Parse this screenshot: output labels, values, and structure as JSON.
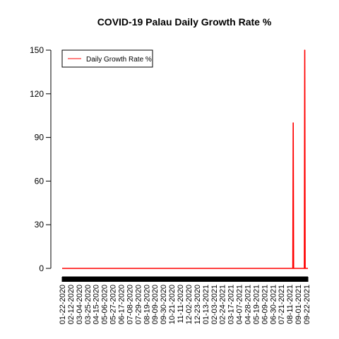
{
  "chart_data": {
    "type": "line",
    "title": "COVID-19 Palau Daily Growth Rate %",
    "xlabel": "",
    "ylabel": "",
    "ylim": [
      0,
      150
    ],
    "y_ticks": [
      0,
      30,
      60,
      90,
      120,
      150
    ],
    "x_range": [
      "2020-01-22",
      "2021-10-01"
    ],
    "x_tick_labels": [
      "01-22-2020",
      "02-12-2020",
      "03-04-2020",
      "03-25-2020",
      "04-15-2020",
      "05-06-2020",
      "05-27-2020",
      "06-17-2020",
      "07-08-2020",
      "07-29-2020",
      "08-19-2020",
      "09-09-2020",
      "09-30-2020",
      "10-21-2020",
      "11-11-2020",
      "12-02-2020",
      "12-23-2020",
      "01-13-2021",
      "02-03-2021",
      "02-24-2021",
      "03-17-2021",
      "04-07-2021",
      "04-28-2021",
      "05-19-2021",
      "06-09-2021",
      "06-30-2021",
      "07-21-2021",
      "08-11-2021",
      "09-01-2021",
      "09-22-2021"
    ],
    "legend_position": "top-left",
    "grid": false,
    "series": [
      {
        "name": "Daily Growth Rate %",
        "color": "#ff0000",
        "points": [
          {
            "x": "2020-01-22",
            "y": 0
          },
          {
            "x": "2021-08-24",
            "y": 0
          },
          {
            "x": "2021-08-25",
            "y": 100
          },
          {
            "x": "2021-08-26",
            "y": 0
          },
          {
            "x": "2021-09-22",
            "y": 0
          },
          {
            "x": "2021-09-23",
            "y": 150
          },
          {
            "x": "2021-09-24",
            "y": 0
          },
          {
            "x": "2021-10-01",
            "y": 0
          }
        ]
      }
    ]
  }
}
